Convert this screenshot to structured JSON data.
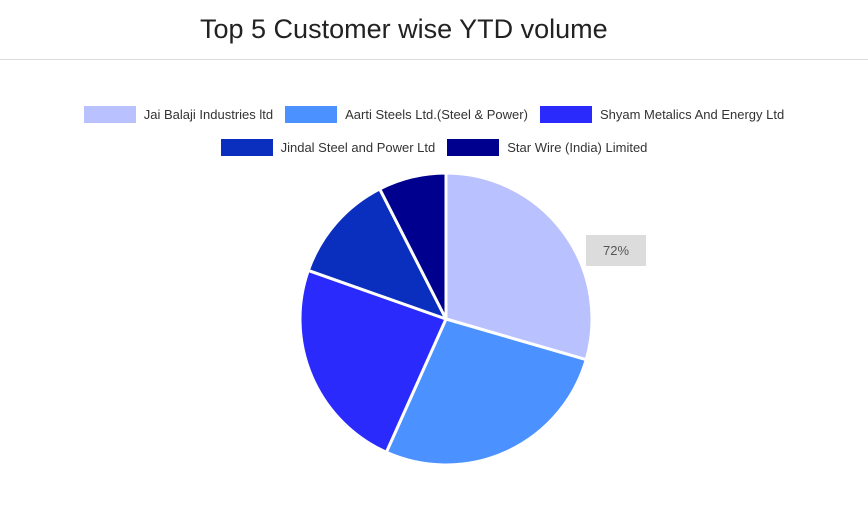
{
  "title": "Top 5 Customer wise YTD volume",
  "tooltip": {
    "text": "72%"
  },
  "chart_data": {
    "type": "pie",
    "title": "Top 5 Customer wise YTD volume",
    "legend_position": "top",
    "categories": [
      "Jai Balaji Industries ltd",
      "Aarti Steels Ltd.(Steel & Power)",
      "Shyam Metalics And Energy Ltd",
      "Jindal Steel and Power Ltd",
      "Star Wire (India) Limited"
    ],
    "values": [
      29.5,
      27.2,
      23.7,
      12.1,
      7.5
    ],
    "colors": [
      "#b9c1fe",
      "#4b91ff",
      "#2a2afc",
      "#0a2fbf",
      "#00008f"
    ]
  }
}
